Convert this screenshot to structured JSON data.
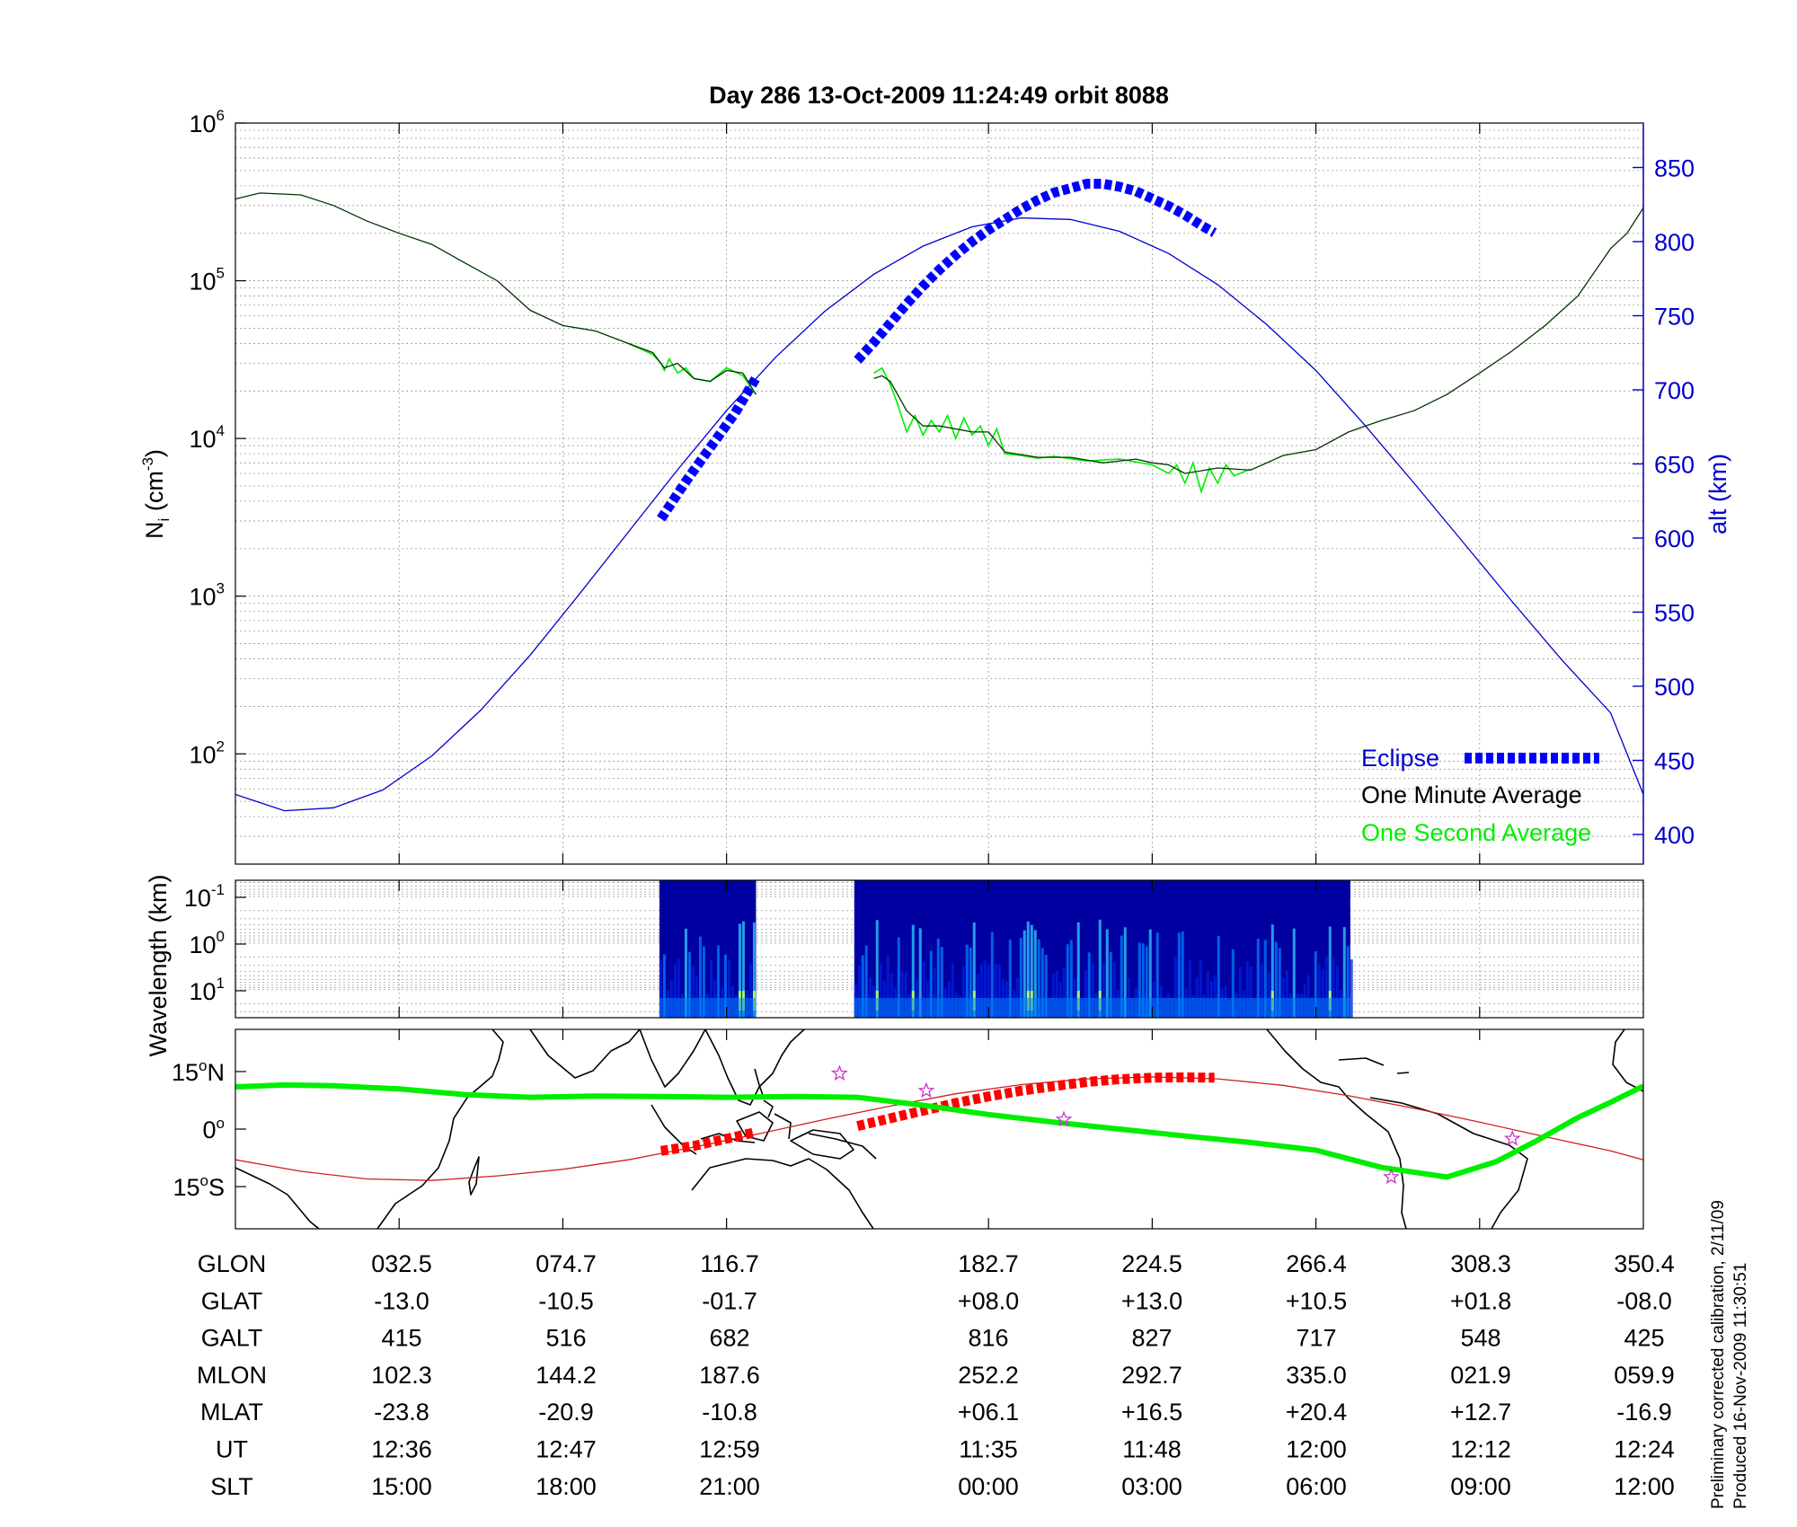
{
  "header": {
    "title": "Day 286  13-Oct-2009 11:24:49   orbit 8088"
  },
  "footnote": {
    "line1": "Preliminary corrected calibration, 2/11/09",
    "line2": "Produced 16-Nov-2009 11:30:51"
  },
  "colors": {
    "altitude": "#0000cc",
    "eclipse": "#0000ff",
    "one_minute": "#000000",
    "one_second": "#00ee00",
    "track_eclipse": "#ff0000",
    "track_line": "#cc2222",
    "dip_equator": "#00ee00",
    "star": "#cc33cc"
  },
  "chart_data": [
    {
      "type": "line",
      "panel": "ion-density",
      "title": "Day 286  13-Oct-2009 11:24:49   orbit 8088",
      "ylabel": "N",
      "ylabel_sub": "i",
      "ylabel_unit_pre": " (cm",
      "ylabel_unit_sup": "-3",
      "ylabel_unit_post": ")",
      "y2label": "alt (km)",
      "yscale": "log",
      "ylim": [
        20,
        1000000
      ],
      "y2lim": [
        380,
        880
      ],
      "x_domain": [
        0,
        8.6
      ],
      "yticks": [
        {
          "base": "10",
          "exp": "6"
        },
        {
          "base": "10",
          "exp": "5"
        },
        {
          "base": "10",
          "exp": "4"
        },
        {
          "base": "10",
          "exp": "3"
        },
        {
          "base": "10",
          "exp": "2"
        }
      ],
      "y2ticks": [
        "850",
        "800",
        "750",
        "700",
        "650",
        "600",
        "550",
        "500",
        "450",
        "400"
      ],
      "legend": {
        "position": "bottom-right",
        "eclipse": "Eclipse",
        "one_minute": "One Minute Average",
        "one_second": "One Second Average"
      },
      "series": [
        {
          "name": "One Minute Average",
          "axis": "left",
          "segments": [
            {
              "x": [
                0,
                0.15,
                0.4,
                0.6,
                0.8,
                1.0,
                1.2,
                1.4,
                1.6,
                1.8,
                2.0,
                2.2,
                2.4,
                2.55,
                2.62,
                2.7,
                2.8,
                2.9,
                3.0,
                3.1,
                3.18
              ],
              "y": [
                330000,
                360000,
                350000,
                300000,
                240000,
                200000,
                170000,
                130000,
                100000,
                65000,
                52000,
                48000,
                40000,
                35000,
                28000,
                30000,
                24000,
                23000,
                27000,
                26000,
                19000
              ]
            },
            {
              "x": [
                3.9,
                3.95,
                4.0,
                4.1,
                4.2,
                4.3,
                4.5,
                4.6,
                4.7,
                4.9,
                5.1,
                5.3,
                5.5,
                5.6,
                5.7,
                5.8,
                6.0,
                6.2,
                6.4,
                6.6,
                6.8,
                7.0,
                7.2,
                7.4,
                7.6,
                7.8,
                8.0,
                8.2,
                8.4,
                8.5,
                8.6
              ],
              "y": [
                24000,
                25000,
                23000,
                15000,
                12000,
                12000,
                11000,
                11000,
                8200,
                7600,
                7600,
                7000,
                7400,
                7000,
                6800,
                6000,
                6500,
                6300,
                7800,
                8500,
                11000,
                13000,
                15000,
                19000,
                26000,
                36000,
                52000,
                80000,
                160000,
                200000,
                290000
              ]
            }
          ]
        },
        {
          "name": "One Second Average",
          "axis": "left",
          "segments": [
            {
              "x": [
                2.4,
                2.5,
                2.55,
                2.6,
                2.62,
                2.65,
                2.7,
                2.75,
                2.8,
                2.9,
                3.0,
                3.1,
                3.18
              ],
              "y": [
                40000,
                36000,
                34000,
                30000,
                27000,
                32000,
                26000,
                28000,
                24000,
                23000,
                28000,
                25000,
                19000
              ]
            },
            {
              "x": [
                3.9,
                3.95,
                4.0,
                4.05,
                4.1,
                4.15,
                4.2,
                4.25,
                4.3,
                4.35,
                4.4,
                4.45,
                4.5,
                4.55,
                4.6,
                4.65,
                4.7,
                4.8,
                4.9,
                5.0,
                5.2,
                5.4,
                5.6,
                5.7,
                5.75,
                5.8,
                5.85,
                5.9,
                5.95,
                6.0,
                6.05,
                6.1,
                6.2
              ],
              "y": [
                26000,
                28000,
                22000,
                16000,
                11000,
                14000,
                10500,
                13000,
                11000,
                14000,
                10000,
                13500,
                10500,
                12000,
                9000,
                11500,
                8000,
                7800,
                7500,
                7700,
                7200,
                7400,
                6800,
                6000,
                6800,
                5200,
                7000,
                4600,
                6500,
                5200,
                6800,
                5800,
                6400
              ]
            }
          ]
        },
        {
          "name": "Altitude",
          "axis": "right",
          "x": [
            0,
            0.3,
            0.6,
            0.9,
            1.2,
            1.5,
            1.8,
            2.1,
            2.4,
            2.7,
            3.0,
            3.3,
            3.6,
            3.9,
            4.2,
            4.5,
            4.8,
            5.1,
            5.4,
            5.7,
            6.0,
            6.3,
            6.6,
            6.9,
            7.2,
            7.5,
            7.8,
            8.1,
            8.4,
            8.6
          ],
          "y": [
            427,
            416,
            418,
            430,
            453,
            484,
            521,
            562,
            604,
            646,
            686,
            722,
            753,
            778,
            797,
            810,
            816,
            815,
            807,
            792,
            771,
            744,
            713,
            676,
            637,
            597,
            557,
            518,
            482,
            427
          ]
        },
        {
          "name": "Eclipse",
          "axis": "right",
          "segments": [
            {
              "x": [
                2.6,
                2.75,
                2.9,
                3.05,
                3.18
              ],
              "y": [
                613,
                638,
                661,
                684,
                708
              ]
            },
            {
              "x": [
                3.8,
                3.9,
                4.0,
                4.1,
                4.2,
                4.3,
                4.4,
                4.5,
                4.6,
                4.7,
                4.8,
                4.9,
                5.0,
                5.1,
                5.2,
                5.3,
                5.4,
                5.5,
                5.6,
                5.7,
                5.8,
                5.9,
                5.98
              ],
              "y": [
                720,
                732,
                745,
                758,
                770,
                781,
                791,
                800,
                808,
                815,
                822,
                828,
                833,
                836,
                839,
                839,
                837,
                834,
                829,
                824,
                818,
                811,
                806
              ]
            }
          ]
        }
      ]
    },
    {
      "type": "heatmap",
      "panel": "wavelength-spectrogram",
      "ylabel": "Wavelength (km)",
      "yscale": "log",
      "yticks": [
        {
          "base": "10",
          "exp": "-1"
        },
        {
          "base": "10",
          "exp": "0"
        },
        {
          "base": "10",
          "exp": "1"
        }
      ],
      "x_domain": [
        0,
        8.6
      ],
      "data_intervals": [
        [
          2.59,
          3.18
        ],
        [
          3.78,
          6.81
        ]
      ],
      "colorscale": [
        "#0000a0",
        "#0020e0",
        "#0080ff",
        "#30d0ff",
        "#a0ff60",
        "#ffff00"
      ]
    },
    {
      "type": "line",
      "panel": "ground-track-map",
      "x_domain": [
        0,
        8.6
      ],
      "ylim": [
        -26,
        26
      ],
      "yticks": [
        {
          "deg": "15",
          "hemi": "N",
          "value": 15
        },
        {
          "deg": "0",
          "hemi": "",
          "value": 0
        },
        {
          "deg": "15",
          "hemi": "S",
          "value": -15
        }
      ],
      "series": [
        {
          "name": "Satellite track",
          "x": [
            0,
            0.4,
            0.8,
            1.2,
            1.6,
            2.0,
            2.4,
            2.8,
            3.2,
            3.6,
            4.0,
            4.4,
            4.8,
            5.2,
            5.6,
            6.0,
            6.4,
            6.8,
            7.2,
            7.6,
            8.0,
            8.4,
            8.6
          ],
          "y": [
            -8.0,
            -11.0,
            -13.0,
            -13.4,
            -12.2,
            -10.5,
            -8.0,
            -4.7,
            -1.2,
            2.5,
            6.0,
            9.2,
            11.6,
            13.1,
            13.6,
            13.1,
            11.4,
            8.7,
            5.4,
            1.8,
            -2.0,
            -5.7,
            -8.0
          ]
        },
        {
          "name": "Eclipse track",
          "segments": [
            {
              "x": [
                2.6,
                2.8,
                3.0,
                3.18
              ],
              "y": [
                -5.7,
                -4.4,
                -2.5,
                -0.8
              ]
            },
            {
              "x": [
                3.8,
                4.0,
                4.2,
                4.4,
                4.6,
                4.8,
                5.0,
                5.2,
                5.4,
                5.6,
                5.8,
                5.98
              ],
              "y": [
                0.8,
                2.8,
                4.8,
                6.8,
                8.5,
                10.0,
                11.2,
                12.3,
                13.0,
                13.4,
                13.5,
                13.4
              ]
            }
          ]
        },
        {
          "name": "Dip equator",
          "x": [
            0,
            0.3,
            0.6,
            1.0,
            1.4,
            1.8,
            2.2,
            2.6,
            3.0,
            3.4,
            3.8,
            4.2,
            4.6,
            5.0,
            5.4,
            5.8,
            6.2,
            6.6,
            7.0,
            7.4,
            7.7,
            7.95,
            8.2,
            8.4,
            8.6
          ],
          "y": [
            11,
            11.5,
            11.3,
            10.5,
            9.0,
            8.3,
            8.6,
            8.5,
            8.3,
            8.5,
            8.3,
            6.2,
            3.8,
            1.8,
            0.0,
            -1.8,
            -3.5,
            -5.5,
            -10.0,
            -12.5,
            -8.5,
            -3.0,
            3.0,
            7.0,
            11.2
          ]
        }
      ],
      "markers": [
        {
          "x": 3.69,
          "y": 14.5
        },
        {
          "x": 4.22,
          "y": 10.0
        },
        {
          "x": 5.06,
          "y": 2.5
        },
        {
          "x": 7.06,
          "y": -12.5
        },
        {
          "x": 7.8,
          "y": -2.5
        }
      ]
    }
  ],
  "table": {
    "rows": [
      {
        "label": "GLON",
        "values": [
          "032.5",
          "074.7",
          "116.7",
          "182.7",
          "224.5",
          "266.4",
          "308.3",
          "350.4"
        ]
      },
      {
        "label": "GLAT",
        "values": [
          "-13.0",
          "-10.5",
          "-01.7",
          "+08.0",
          "+13.0",
          "+10.5",
          "+01.8",
          "-08.0"
        ]
      },
      {
        "label": "GALT",
        "values": [
          "415",
          "516",
          "682",
          "816",
          "827",
          "717",
          "548",
          "425"
        ]
      },
      {
        "label": "MLON",
        "values": [
          "102.3",
          "144.2",
          "187.6",
          "252.2",
          "292.7",
          "335.0",
          "021.9",
          "059.9"
        ]
      },
      {
        "label": "MLAT",
        "values": [
          "-23.8",
          "-20.9",
          "-10.8",
          "+06.1",
          "+16.5",
          "+20.4",
          "+12.7",
          "-16.9"
        ]
      },
      {
        "label": "UT",
        "values": [
          "12:36",
          "12:47",
          "12:59",
          "11:35",
          "11:48",
          "12:00",
          "12:12",
          "12:24"
        ]
      },
      {
        "label": "SLT",
        "values": [
          "15:00",
          "18:00",
          "21:00",
          "00:00",
          "03:00",
          "06:00",
          "09:00",
          "12:00"
        ]
      }
    ]
  }
}
